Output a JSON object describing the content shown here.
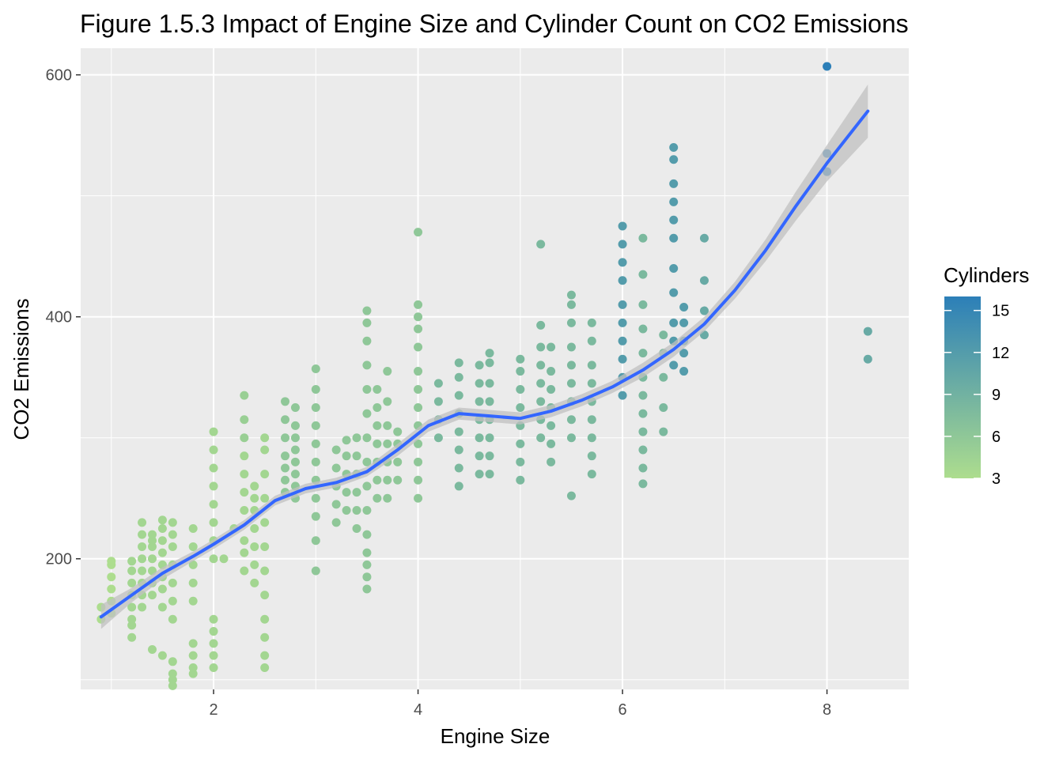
{
  "chart_data": {
    "type": "scatter",
    "title": "Figure 1.5.3 Impact of Engine Size and Cylinder Count on CO2 Emissions",
    "xlabel": "Engine Size",
    "ylabel": "CO2 Emissions",
    "xlim": [
      0.7,
      8.8
    ],
    "ylim": [
      92,
      622
    ],
    "x_ticks": [
      2,
      4,
      6,
      8
    ],
    "y_ticks": [
      200,
      400,
      600
    ],
    "grid": true,
    "legend": {
      "title": "Cylinders",
      "type": "colorbar",
      "position": "right",
      "ticks": [
        3,
        6,
        9,
        12,
        15
      ],
      "range": [
        3,
        16
      ],
      "low_color": "#addd8e",
      "high_color": "#2c7fb8"
    },
    "colors": {
      "panel_bg": "#ebebeb",
      "grid": "#ffffff",
      "smooth_line": "#3366ff",
      "confidence_band": "#c0c0c0"
    },
    "point_groups": [
      {
        "x": 0.9,
        "y": [
          150,
          160
        ],
        "cylinders": 3
      },
      {
        "x": 1.0,
        "y": [
          155,
          165,
          175,
          185,
          195,
          198
        ],
        "cylinders": 3
      },
      {
        "x": 1.2,
        "y": [
          135,
          145,
          150,
          160,
          170,
          180,
          190,
          198
        ],
        "cylinders": 4
      },
      {
        "x": 1.3,
        "y": [
          160,
          170,
          180,
          190,
          200,
          210,
          220,
          230
        ],
        "cylinders": 4
      },
      {
        "x": 1.4,
        "y": [
          125,
          170,
          180,
          190,
          200,
          210,
          215,
          220
        ],
        "cylinders": 4
      },
      {
        "x": 1.5,
        "y": [
          120,
          160,
          175,
          185,
          195,
          205,
          215,
          225,
          232
        ],
        "cylinders": 4
      },
      {
        "x": 1.6,
        "y": [
          95,
          100,
          105,
          115,
          150,
          165,
          180,
          195,
          210,
          220,
          230
        ],
        "cylinders": 4
      },
      {
        "x": 1.8,
        "y": [
          105,
          110,
          120,
          130,
          165,
          180,
          195,
          210,
          225
        ],
        "cylinders": 4
      },
      {
        "x": 2.0,
        "y": [
          110,
          120,
          130,
          140,
          150,
          200,
          215,
          230,
          245,
          260,
          275,
          290,
          305
        ],
        "cylinders": 4
      },
      {
        "x": 2.1,
        "y": [
          200
        ],
        "cylinders": 4
      },
      {
        "x": 2.2,
        "y": [
          225
        ],
        "cylinders": 4
      },
      {
        "x": 2.3,
        "y": [
          190,
          205,
          215,
          240,
          255,
          270,
          285
        ],
        "cylinders": 4
      },
      {
        "x": 2.3,
        "y": [
          300,
          315,
          335
        ],
        "cylinders": 5
      },
      {
        "x": 2.4,
        "y": [
          180,
          195,
          210,
          225,
          240,
          250,
          260
        ],
        "cylinders": 4
      },
      {
        "x": 2.5,
        "y": [
          110,
          120,
          135,
          150,
          170,
          190,
          210,
          230,
          250,
          270,
          290,
          300
        ],
        "cylinders": 4
      },
      {
        "x": 2.7,
        "y": [
          255,
          265,
          275,
          285,
          300,
          315,
          330
        ],
        "cylinders": 6
      },
      {
        "x": 2.8,
        "y": [
          250,
          260,
          270,
          280,
          290,
          300,
          310,
          325
        ],
        "cylinders": 6
      },
      {
        "x": 3.0,
        "y": [
          190,
          215,
          235,
          250,
          265,
          280,
          295,
          310,
          325,
          340,
          357
        ],
        "cylinders": 6
      },
      {
        "x": 3.2,
        "y": [
          230,
          245,
          260,
          275,
          290
        ],
        "cylinders": 6
      },
      {
        "x": 3.3,
        "y": [
          240,
          255,
          270,
          285,
          298
        ],
        "cylinders": 6
      },
      {
        "x": 3.4,
        "y": [
          225,
          240,
          255,
          270,
          285,
          300
        ],
        "cylinders": 6
      },
      {
        "x": 3.5,
        "y": [
          175,
          185,
          195,
          205,
          220,
          240,
          260,
          280,
          300,
          320,
          340,
          360,
          380,
          395,
          405
        ],
        "cylinders": 6
      },
      {
        "x": 3.6,
        "y": [
          250,
          265,
          280,
          295,
          310,
          325,
          340
        ],
        "cylinders": 6
      },
      {
        "x": 3.7,
        "y": [
          250,
          265,
          280,
          295,
          310,
          330,
          355
        ],
        "cylinders": 6
      },
      {
        "x": 3.8,
        "y": [
          265,
          280,
          295,
          305
        ],
        "cylinders": 6
      },
      {
        "x": 4.0,
        "y": [
          250,
          265,
          280,
          295,
          310,
          325,
          340,
          355,
          375,
          390,
          400,
          410,
          470
        ],
        "cylinders": 6
      },
      {
        "x": 4.2,
        "y": [
          300,
          315,
          330,
          345
        ],
        "cylinders": 8
      },
      {
        "x": 4.4,
        "y": [
          260,
          275,
          290,
          305,
          320,
          335,
          350,
          362
        ],
        "cylinders": 8
      },
      {
        "x": 4.6,
        "y": [
          270,
          285,
          300,
          315,
          330,
          345,
          360
        ],
        "cylinders": 8
      },
      {
        "x": 4.7,
        "y": [
          270,
          285,
          300,
          315,
          330,
          345,
          362,
          370
        ],
        "cylinders": 8
      },
      {
        "x": 5.0,
        "y": [
          265,
          280,
          295,
          310,
          325,
          340,
          355,
          365
        ],
        "cylinders": 8
      },
      {
        "x": 5.2,
        "y": [
          300,
          315,
          330,
          345,
          360,
          375,
          393,
          460
        ],
        "cylinders": 8
      },
      {
        "x": 5.3,
        "y": [
          280,
          295,
          310,
          325,
          340,
          355,
          375
        ],
        "cylinders": 8
      },
      {
        "x": 5.5,
        "y": [
          252,
          300,
          315,
          330,
          345,
          360,
          375,
          395,
          410,
          418
        ],
        "cylinders": 8
      },
      {
        "x": 5.7,
        "y": [
          270,
          285,
          300,
          315,
          330,
          345,
          360,
          380,
          395
        ],
        "cylinders": 8
      },
      {
        "x": 6.0,
        "y": [
          335,
          350,
          365,
          380,
          395,
          410,
          430,
          445,
          460,
          475
        ],
        "cylinders": 12
      },
      {
        "x": 6.2,
        "y": [
          262,
          275,
          290,
          305,
          320,
          335,
          350,
          370,
          390,
          410,
          435,
          465
        ],
        "cylinders": 8
      },
      {
        "x": 6.4,
        "y": [
          305,
          325,
          350,
          370,
          385
        ],
        "cylinders": 8
      },
      {
        "x": 6.5,
        "y": [
          360,
          380,
          395,
          420,
          440,
          465,
          480,
          495,
          510,
          530,
          540
        ],
        "cylinders": 12
      },
      {
        "x": 6.6,
        "y": [
          355,
          370,
          380,
          395,
          408
        ],
        "cylinders": 12
      },
      {
        "x": 6.8,
        "y": [
          385,
          405,
          430,
          465
        ],
        "cylinders": 10
      },
      {
        "x": 8.0,
        "y": [
          520,
          535,
          607
        ],
        "cylinders": 16
      },
      {
        "x": 8.4,
        "y": [
          365,
          388
        ],
        "cylinders": 10
      }
    ],
    "smooth_line": {
      "x": [
        0.9,
        1.2,
        1.5,
        1.8,
        2.0,
        2.3,
        2.6,
        2.9,
        3.2,
        3.5,
        3.8,
        4.1,
        4.4,
        4.7,
        5.0,
        5.3,
        5.6,
        5.9,
        6.2,
        6.5,
        6.8,
        7.1,
        7.4,
        7.7,
        8.0,
        8.4
      ],
      "y": [
        152,
        170,
        188,
        202,
        212,
        228,
        248,
        258,
        263,
        272,
        290,
        310,
        320,
        318,
        316,
        322,
        331,
        342,
        356,
        373,
        394,
        422,
        455,
        492,
        527,
        570
      ],
      "band_halfwidth": [
        10,
        6,
        5,
        4,
        4,
        4,
        4,
        4,
        4,
        4,
        5,
        5,
        5,
        5,
        5,
        5,
        5,
        5,
        6,
        6,
        6,
        7,
        9,
        12,
        15,
        22
      ]
    }
  }
}
